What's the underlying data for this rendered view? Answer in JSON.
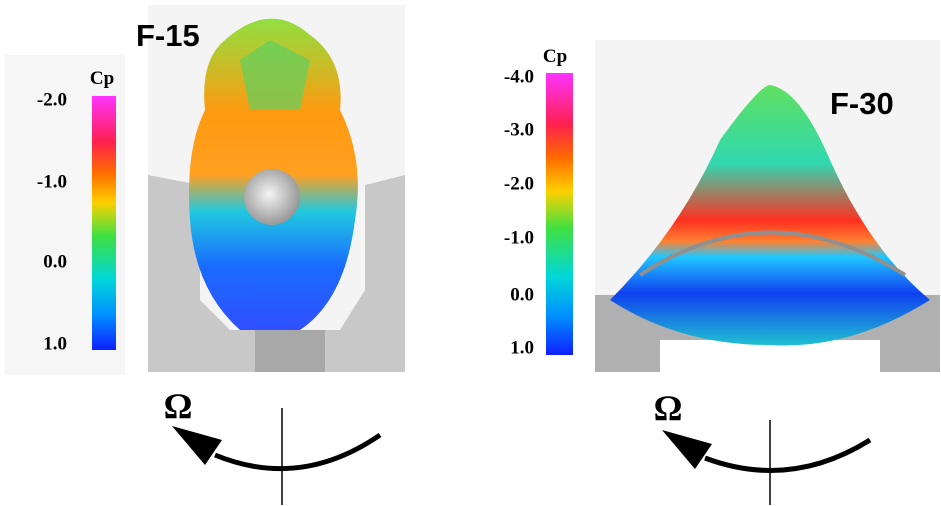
{
  "panels": [
    {
      "title": "F-15",
      "colorbar": {
        "label": "Cp",
        "ticks": [
          "-2.0",
          "-1.0",
          "0.0",
          "1.0"
        ]
      },
      "rotation": "Ω"
    },
    {
      "title": "F-30",
      "colorbar": {
        "label": "Cp",
        "ticks": [
          "-4.0",
          "-3.0",
          "-2.0",
          "-1.0",
          "0.0",
          "1.0"
        ]
      },
      "rotation": "Ω"
    }
  ]
}
